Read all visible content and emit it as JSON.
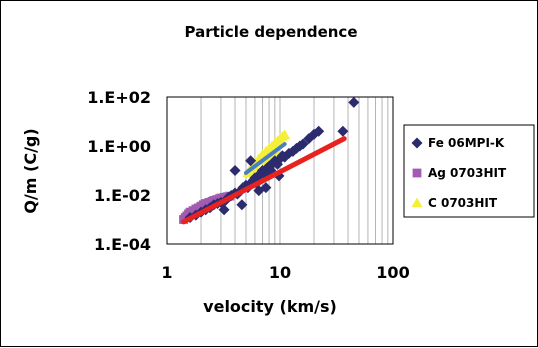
{
  "chart_data": {
    "type": "scatter",
    "title": "Particle dependence",
    "xlabel": "velocity (km/s)",
    "ylabel": "Q/m (C/g)",
    "xscale": "log",
    "yscale": "log",
    "xlim": [
      1,
      100
    ],
    "ylim": [
      0.0001,
      100
    ],
    "x_ticks": [
      "1",
      "10",
      "100"
    ],
    "y_ticks": [
      "1.E-04",
      "1.E-02",
      "1.E+00",
      "1.E+02"
    ],
    "grid": "vertical minor gridlines",
    "legend_position": "right",
    "series": [
      {
        "name": "Fe 06MPI-K",
        "marker": "diamond",
        "color": "#2b2b6e",
        "points": [
          [
            1.6,
            0.0012
          ],
          [
            1.8,
            0.0015
          ],
          [
            2.0,
            0.002
          ],
          [
            2.2,
            0.0025
          ],
          [
            2.4,
            0.003
          ],
          [
            2.6,
            0.004
          ],
          [
            2.8,
            0.0045
          ],
          [
            3.0,
            0.005
          ],
          [
            3.3,
            0.006
          ],
          [
            3.5,
            0.008
          ],
          [
            3.7,
            0.0095
          ],
          [
            4.0,
            0.012
          ],
          [
            4.2,
            0.011
          ],
          [
            4.5,
            0.015
          ],
          [
            4.7,
            0.02
          ],
          [
            5.0,
            0.025
          ],
          [
            5.2,
            0.02
          ],
          [
            5.5,
            0.03
          ],
          [
            5.8,
            0.04
          ],
          [
            6.0,
            0.05
          ],
          [
            6.2,
            0.03
          ],
          [
            6.5,
            0.06
          ],
          [
            6.8,
            0.08
          ],
          [
            7.0,
            0.1
          ],
          [
            7.3,
            0.07
          ],
          [
            7.6,
            0.12
          ],
          [
            8.0,
            0.15
          ],
          [
            8.3,
            0.1
          ],
          [
            8.7,
            0.2
          ],
          [
            9.0,
            0.25
          ],
          [
            9.5,
            0.18
          ],
          [
            10.0,
            0.3
          ],
          [
            10.5,
            0.4
          ],
          [
            11.0,
            0.35
          ],
          [
            12.0,
            0.5
          ],
          [
            13.0,
            0.6
          ],
          [
            14.0,
            0.8
          ],
          [
            15.0,
            1.0
          ],
          [
            16.0,
            1.2
          ],
          [
            18.0,
            2.0
          ],
          [
            20.0,
            3.0
          ],
          [
            22.0,
            4.0
          ],
          [
            4.0,
            0.1
          ],
          [
            5.5,
            0.25
          ],
          [
            6.5,
            0.015
          ],
          [
            7.5,
            0.02
          ],
          [
            3.2,
            0.0025
          ],
          [
            4.6,
            0.004
          ],
          [
            9.8,
            0.06
          ],
          [
            36.0,
            4.0
          ],
          [
            45.0,
            60.0
          ]
        ]
      },
      {
        "name": "Ag 0703HIT",
        "marker": "square",
        "color": "#a35bb1",
        "points": [
          [
            1.4,
            0.001
          ],
          [
            1.45,
            0.0012
          ],
          [
            1.5,
            0.0014
          ],
          [
            1.55,
            0.0017
          ],
          [
            1.6,
            0.002
          ],
          [
            1.7,
            0.0023
          ],
          [
            1.8,
            0.0027
          ],
          [
            1.9,
            0.003
          ],
          [
            2.0,
            0.0035
          ],
          [
            2.1,
            0.004
          ],
          [
            2.2,
            0.0045
          ],
          [
            2.35,
            0.005
          ],
          [
            2.5,
            0.0055
          ],
          [
            2.6,
            0.006
          ],
          [
            2.75,
            0.0065
          ],
          [
            2.9,
            0.007
          ],
          [
            3.0,
            0.0075
          ],
          [
            3.2,
            0.008
          ],
          [
            3.4,
            0.0085
          ],
          [
            3.6,
            0.009
          ]
        ]
      },
      {
        "name": "C 0703HIT",
        "marker": "triangle",
        "color": "#f4f03a",
        "points": [
          [
            5.2,
            0.08
          ],
          [
            5.5,
            0.12
          ],
          [
            6.0,
            0.2
          ],
          [
            6.5,
            0.3
          ],
          [
            7.0,
            0.45
          ],
          [
            7.5,
            0.6
          ],
          [
            8.0,
            0.8
          ],
          [
            8.5,
            1.0
          ],
          [
            9.0,
            1.3
          ],
          [
            9.5,
            1.6
          ],
          [
            10.0,
            2.0
          ],
          [
            10.5,
            2.4
          ],
          [
            11.0,
            2.8
          ],
          [
            6.2,
            0.1
          ],
          [
            7.2,
            0.25
          ],
          [
            8.2,
            0.35
          ],
          [
            9.2,
            0.55
          ]
        ]
      }
    ],
    "fit_lines": [
      {
        "color": "#e8231f",
        "x": [
          1.4,
          37.0
        ],
        "y": [
          0.0008,
          2.0
        ]
      },
      {
        "color": "#4a7fc0",
        "x": [
          5.0,
          11.0
        ],
        "y": [
          0.08,
          1.2
        ]
      }
    ]
  }
}
